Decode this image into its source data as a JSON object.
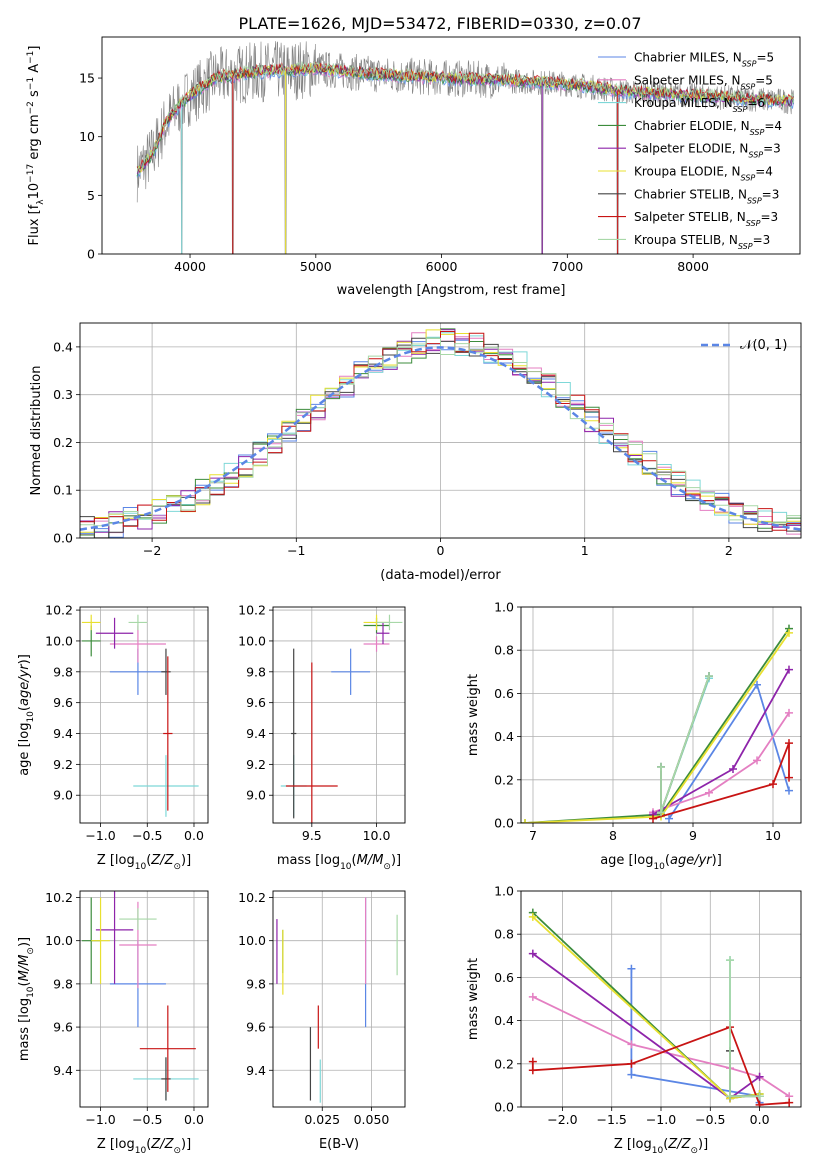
{
  "figure": {
    "title": "PLATE=1626, MJD=53472, FIBERID=0330, z=0.07"
  },
  "model_colors": [
    "#5b86e5",
    "#e47fc2",
    "#7ed8d8",
    "#3c8c3c",
    "#8e24aa",
    "#e8e030",
    "#444444",
    "#c81414",
    "#a8d8a8"
  ],
  "chart_data": [
    {
      "id": "spectrum",
      "type": "line",
      "xlabel": "wavelength [Angstrom, rest frame]",
      "ylabel": "Flux [f",
      "ylabel_full": "Flux [fλ10^-17 erg cm^-2 s^-1 A^-1]",
      "xlim": [
        3300,
        8850
      ],
      "ylim": [
        0,
        18.5
      ],
      "xticks": [
        4000,
        5000,
        6000,
        7000,
        8000
      ],
      "yticks": [
        0,
        5,
        10,
        15
      ],
      "grid": false,
      "legend_position": "top-right",
      "series": [
        {
          "name": "Chabrier MILES, N_SSP=5",
          "color": "#5b86e5"
        },
        {
          "name": "Salpeter MILES, N_SSP=5",
          "color": "#e47fc2"
        },
        {
          "name": "Kroupa MILES, N_SSP=6",
          "color": "#7ed8d8"
        },
        {
          "name": "Chabrier ELODIE, N_SSP=4",
          "color": "#3c8c3c"
        },
        {
          "name": "Salpeter ELODIE, N_SSP=3",
          "color": "#8e24aa"
        },
        {
          "name": "Kroupa ELODIE, N_SSP=4",
          "color": "#e8e030"
        },
        {
          "name": "Chabrier STELIB, N_SSP=3",
          "color": "#444444"
        },
        {
          "name": "Salpeter STELIB, N_SSP=3",
          "color": "#c81414"
        },
        {
          "name": "Kroupa STELIB, N_SSP=3",
          "color": "#a8d8a8"
        }
      ],
      "continuum": {
        "x": [
          3580,
          3700,
          3800,
          3900,
          4000,
          4200,
          4500,
          5000,
          5500,
          6000,
          6500,
          7000,
          7500,
          8000,
          8500,
          8800
        ],
        "y": [
          7.0,
          8.5,
          11.0,
          12.5,
          13.5,
          15.0,
          15.5,
          15.8,
          15.3,
          15.0,
          14.8,
          14.5,
          13.8,
          13.5,
          13.2,
          13.0
        ]
      },
      "absorption_lines": [
        3934,
        4340,
        4760,
        6800,
        7400
      ],
      "observed_color": "#808080",
      "fit_color": "#7ed8d8"
    },
    {
      "id": "residuals",
      "type": "area",
      "xlabel": "(data-model)/error",
      "ylabel": "Normed distribution",
      "xlim": [
        -2.5,
        2.5
      ],
      "ylim": [
        0,
        0.45
      ],
      "xticks": [
        -2,
        -1,
        0,
        1,
        2
      ],
      "yticks": [
        0.0,
        0.1,
        0.2,
        0.3,
        0.4
      ],
      "grid": true,
      "legend_position": "top-right",
      "legend_label": "𝒩(0, 1)",
      "normal_color": "#5b86e5",
      "bin_width": 0.1
    },
    {
      "id": "age-vs-Z",
      "type": "scatter",
      "xlabel": "Z [log",
      "ylabel": "age  [log",
      "xlim": [
        -1.22,
        0.15
      ],
      "ylim": [
        8.82,
        10.22
      ],
      "xticks": [
        -1.0,
        -0.5,
        0.0
      ],
      "yticks": [
        9.0,
        9.2,
        9.4,
        9.6,
        9.8,
        10.0,
        10.2
      ],
      "grid": true,
      "points": [
        {
          "series": "Chabrier MILES",
          "x": -0.6,
          "y": 9.8,
          "xerr": 0.3,
          "yerr": 0.15
        },
        {
          "series": "Salpeter MILES",
          "x": -0.6,
          "y": 9.98,
          "xerr": 0.3,
          "yerr": 0.12
        },
        {
          "series": "Kroupa MILES",
          "x": -0.3,
          "y": 9.06,
          "xerr": 0.35,
          "yerr": 0.2
        },
        {
          "series": "Chabrier ELODIE",
          "x": -1.1,
          "y": 10.0,
          "xerr": 0.1,
          "yerr": 0.1
        },
        {
          "series": "Salpeter ELODIE",
          "x": -0.85,
          "y": 10.05,
          "xerr": 0.2,
          "yerr": 0.1
        },
        {
          "series": "Kroupa ELODIE",
          "x": -1.1,
          "y": 10.12,
          "xerr": 0.1,
          "yerr": 0.05
        },
        {
          "series": "Chabrier STELIB",
          "x": -0.3,
          "y": 9.8,
          "xerr": 0.05,
          "yerr": 0.15
        },
        {
          "series": "Salpeter STELIB",
          "x": -0.28,
          "y": 9.4,
          "xerr": 0.05,
          "yerr": 0.5
        },
        {
          "series": "Kroupa STELIB",
          "x": -0.6,
          "y": 10.12,
          "xerr": 0.1,
          "yerr": 0.05
        }
      ]
    },
    {
      "id": "age-vs-mass",
      "type": "scatter",
      "xlabel": "mass [log",
      "ylabel": "",
      "xlim": [
        9.2,
        10.22
      ],
      "ylim": [
        8.82,
        10.22
      ],
      "xticks": [
        9.5,
        10.0
      ],
      "yticks": [
        9.0,
        9.2,
        9.4,
        9.6,
        9.8,
        10.0,
        10.2
      ],
      "grid": true,
      "points": [
        {
          "series": "Chabrier MILES",
          "x": 9.8,
          "y": 9.8,
          "xerr": 0.15,
          "yerr": 0.15
        },
        {
          "series": "Salpeter MILES",
          "x": 10.0,
          "y": 9.98,
          "xerr": 0.1,
          "yerr": 0.05
        },
        {
          "series": "Kroupa MILES",
          "x": 9.36,
          "y": 9.06,
          "xerr": 0.1,
          "yerr": 0.2
        },
        {
          "series": "Chabrier ELODIE",
          "x": 10.0,
          "y": 10.1,
          "xerr": 0.1,
          "yerr": 0.05
        },
        {
          "series": "Salpeter ELODIE",
          "x": 10.05,
          "y": 10.05,
          "xerr": 0.05,
          "yerr": 0.07
        },
        {
          "series": "Kroupa ELODIE",
          "x": 10.0,
          "y": 10.12,
          "xerr": 0.1,
          "yerr": 0.05
        },
        {
          "series": "Chabrier STELIB",
          "x": 9.36,
          "y": 9.4,
          "xerr": 0.02,
          "yerr": 0.55
        },
        {
          "series": "Salpeter STELIB",
          "x": 9.5,
          "y": 9.06,
          "xerr": 0.2,
          "yerr": 0.8
        },
        {
          "series": "Kroupa STELIB",
          "x": 10.1,
          "y": 10.12,
          "xerr": 0.1,
          "yerr": 0.05
        }
      ]
    },
    {
      "id": "weight-vs-age",
      "type": "line",
      "xlabel": "age  [log",
      "ylabel": "mass weight",
      "xlim": [
        6.85,
        10.35
      ],
      "ylim": [
        0,
        1.0
      ],
      "xticks": [
        7,
        8,
        9,
        10
      ],
      "yticks": [
        0.0,
        0.2,
        0.4,
        0.6,
        0.8,
        1.0
      ],
      "grid": true,
      "series": [
        {
          "name": "Chabrier MILES",
          "x": [
            8.7,
            9.8,
            10.2
          ],
          "y": [
            0.02,
            0.64,
            0.15
          ]
        },
        {
          "name": "Salpeter MILES",
          "x": [
            8.5,
            9.2,
            9.8,
            10.2
          ],
          "y": [
            0.05,
            0.14,
            0.29,
            0.51
          ]
        },
        {
          "name": "Kroupa MILES",
          "x": [
            8.6,
            8.6,
            9.2,
            9.2
          ],
          "y": [
            0.26,
            0.05,
            0.67,
            0.68
          ]
        },
        {
          "name": "Chabrier ELODIE",
          "x": [
            6.9,
            8.6,
            10.2
          ],
          "y": [
            0.0,
            0.04,
            0.9
          ]
        },
        {
          "name": "Salpeter ELODIE",
          "x": [
            8.5,
            9.5,
            10.2
          ],
          "y": [
            0.04,
            0.25,
            0.71
          ]
        },
        {
          "name": "Kroupa ELODIE",
          "x": [
            6.9,
            8.6,
            10.2
          ],
          "y": [
            0.0,
            0.03,
            0.88
          ]
        },
        {
          "name": "Chabrier STELIB",
          "x": [
            8.6,
            8.6,
            9.2
          ],
          "y": [
            0.26,
            0.05,
            0.68
          ]
        },
        {
          "name": "Salpeter STELIB",
          "x": [
            8.5,
            10.0,
            10.2,
            10.2
          ],
          "y": [
            0.02,
            0.18,
            0.37,
            0.21
          ]
        },
        {
          "name": "Kroupa STELIB",
          "x": [
            8.6,
            8.6,
            9.2
          ],
          "y": [
            0.26,
            0.05,
            0.68
          ]
        }
      ]
    },
    {
      "id": "mass-vs-Z",
      "type": "scatter",
      "xlabel": "Z [log",
      "ylabel": "mass [log",
      "xlim": [
        -1.22,
        0.15
      ],
      "ylim": [
        9.23,
        10.23
      ],
      "xticks": [
        -1.0,
        -0.5,
        0.0
      ],
      "yticks": [
        9.4,
        9.6,
        9.8,
        10.0,
        10.2
      ],
      "grid": true,
      "points": [
        {
          "series": "Chabrier MILES",
          "x": -0.6,
          "y": 9.8,
          "xerr": 0.3,
          "yerr": 0.2
        },
        {
          "series": "Salpeter MILES",
          "x": -0.6,
          "y": 9.98,
          "xerr": 0.2,
          "yerr": 0.2
        },
        {
          "series": "Kroupa MILES",
          "x": -0.3,
          "y": 9.36,
          "xerr": 0.35,
          "yerr": 0.1
        },
        {
          "series": "Chabrier ELODIE",
          "x": -1.1,
          "y": 10.0,
          "xerr": 0.1,
          "yerr": 0.2
        },
        {
          "series": "Salpeter ELODIE",
          "x": -0.85,
          "y": 10.05,
          "xerr": 0.2,
          "yerr": 0.25
        },
        {
          "series": "Kroupa ELODIE",
          "x": -1.0,
          "y": 10.0,
          "xerr": 0.1,
          "yerr": 0.2
        },
        {
          "series": "Chabrier STELIB",
          "x": -0.3,
          "y": 9.36,
          "xerr": 0.05,
          "yerr": 0.1
        },
        {
          "series": "Salpeter STELIB",
          "x": -0.28,
          "y": 9.5,
          "xerr": 0.3,
          "yerr": 0.2
        },
        {
          "series": "Kroupa STELIB",
          "x": -0.6,
          "y": 10.1,
          "xerr": 0.2,
          "yerr": 0.05
        }
      ]
    },
    {
      "id": "mass-vs-ebv",
      "type": "scatter",
      "xlabel": "E(B-V)",
      "ylabel": "",
      "xlim": [
        0.0,
        0.067
      ],
      "ylim": [
        9.23,
        10.23
      ],
      "xticks": [
        0.025,
        0.05
      ],
      "yticks": [
        9.4,
        9.6,
        9.8,
        10.0,
        10.2
      ],
      "grid": true,
      "points": [
        {
          "series": "Chabrier MILES",
          "x": 0.047,
          "y": 9.9,
          "yerr": 0.3
        },
        {
          "series": "Salpeter MILES",
          "x": 0.047,
          "y": 10.0,
          "yerr": 0.2
        },
        {
          "series": "Kroupa MILES",
          "x": 0.024,
          "y": 9.35,
          "yerr": 0.1
        },
        {
          "series": "Chabrier ELODIE",
          "x": 0.005,
          "y": 9.95,
          "yerr": 0.1
        },
        {
          "series": "Salpeter ELODIE",
          "x": 0.002,
          "y": 9.95,
          "yerr": 0.15
        },
        {
          "series": "Kroupa ELODIE",
          "x": 0.005,
          "y": 9.9,
          "yerr": 0.15
        },
        {
          "series": "Chabrier STELIB",
          "x": 0.019,
          "y": 9.43,
          "yerr": 0.17
        },
        {
          "series": "Salpeter STELIB",
          "x": 0.023,
          "y": 9.6,
          "yerr": 0.1
        },
        {
          "series": "Kroupa STELIB",
          "x": 0.063,
          "y": 9.98,
          "yerr": 0.14
        }
      ]
    },
    {
      "id": "weight-vs-Z",
      "type": "line",
      "xlabel": "Z [log",
      "ylabel": "mass weight",
      "xlim": [
        -2.42,
        0.42
      ],
      "ylim": [
        0,
        1.0
      ],
      "xticks": [
        -2.0,
        -1.5,
        -1.0,
        -0.5,
        0.0
      ],
      "yticks": [
        0.0,
        0.2,
        0.4,
        0.6,
        0.8,
        1.0
      ],
      "grid": true,
      "series": [
        {
          "name": "Chabrier MILES",
          "x": [
            -1.3,
            -1.3,
            0.0,
            0.0
          ],
          "y": [
            0.64,
            0.15,
            0.05,
            0.02
          ]
        },
        {
          "name": "Salpeter MILES",
          "x": [
            -2.3,
            -1.3,
            -0.3,
            0.0,
            0.3
          ],
          "y": [
            0.51,
            0.29,
            0.18,
            0.14,
            0.05
          ]
        },
        {
          "name": "Kroupa MILES",
          "x": [
            -0.3,
            -0.3,
            0.0
          ],
          "y": [
            0.68,
            0.05,
            0.05
          ]
        },
        {
          "name": "Chabrier ELODIE",
          "x": [
            -2.3,
            -0.3,
            0.0
          ],
          "y": [
            0.9,
            0.04,
            0.06
          ]
        },
        {
          "name": "Salpeter ELODIE",
          "x": [
            -2.3,
            -0.3,
            0.0
          ],
          "y": [
            0.71,
            0.04,
            0.14
          ]
        },
        {
          "name": "Kroupa ELODIE",
          "x": [
            -2.3,
            -0.3,
            0.0
          ],
          "y": [
            0.88,
            0.04,
            0.06
          ]
        },
        {
          "name": "Chabrier STELIB",
          "x": [
            -0.3,
            -0.3,
            0.0
          ],
          "y": [
            0.26,
            0.05,
            0.05
          ]
        },
        {
          "name": "Salpeter STELIB",
          "x": [
            -2.3,
            -2.3,
            -1.3,
            -0.3,
            0.0,
            0.3
          ],
          "y": [
            0.21,
            0.17,
            0.2,
            0.37,
            0.01,
            0.02
          ]
        },
        {
          "name": "Kroupa STELIB",
          "x": [
            -0.3,
            -0.3,
            0.0
          ],
          "y": [
            0.68,
            0.05,
            0.05
          ]
        }
      ]
    }
  ]
}
